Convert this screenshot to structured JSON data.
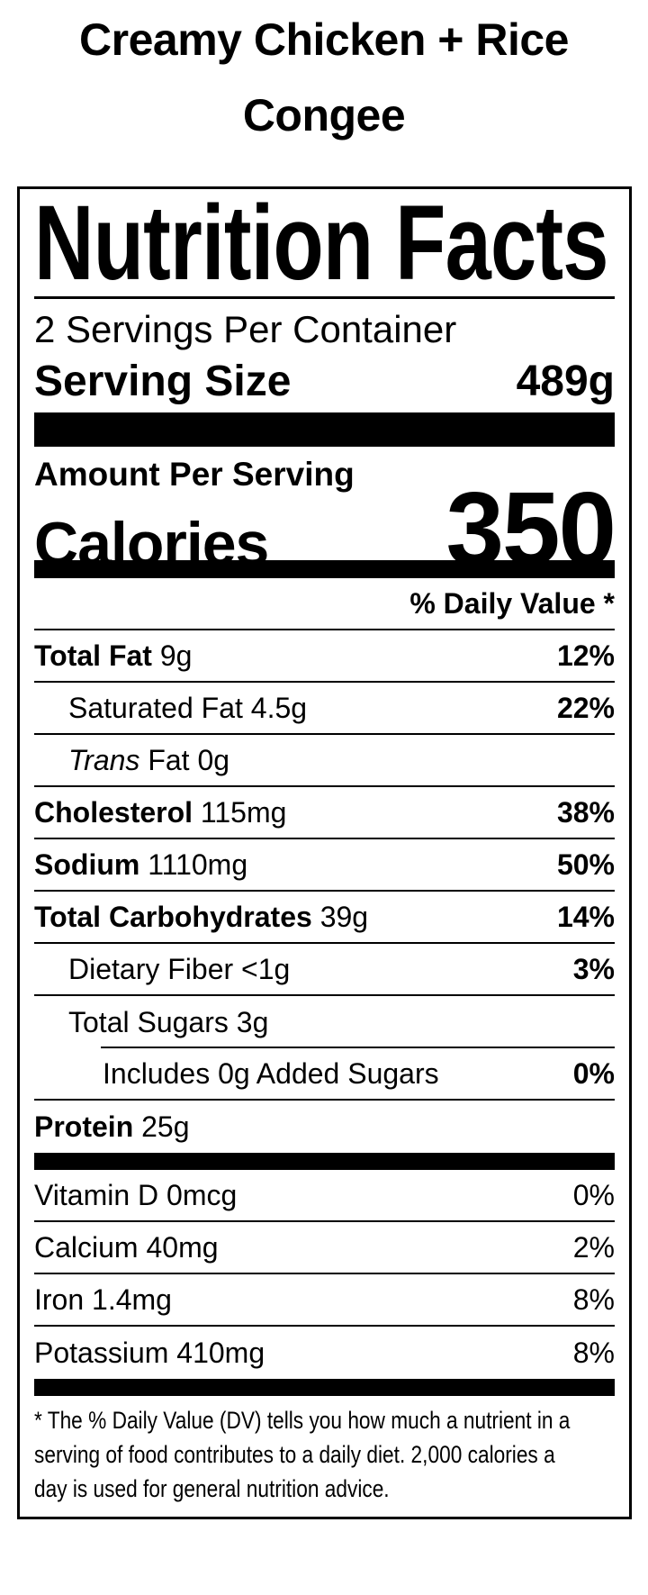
{
  "title": "Creamy Chicken + Rice Congee",
  "label": {
    "heading": "Nutrition Facts",
    "servings_per_container": "2 Servings Per Container",
    "serving_size": {
      "label": "Serving Size",
      "value": "489g"
    },
    "amount_per_serving": "Amount Per Serving",
    "calories": {
      "label": "Calories",
      "value": "350"
    },
    "daily_value_header": "% Daily Value *",
    "nutrient_rows": [
      {
        "b": "Total Fat",
        "r": " 9g",
        "dv": "12%",
        "dv_bold": true,
        "indent": 0,
        "rule": "full"
      },
      {
        "r": "Saturated Fat 4.5g",
        "dv": "22%",
        "dv_bold": true,
        "indent": 1,
        "rule": "full"
      },
      {
        "i": "Trans",
        "r": " Fat 0g",
        "dv": "",
        "dv_bold": false,
        "indent": 1,
        "rule": "full"
      },
      {
        "b": "Cholesterol",
        "r": " 115mg",
        "dv": "38%",
        "dv_bold": true,
        "indent": 0,
        "rule": "full"
      },
      {
        "b": "Sodium",
        "r": " 1110mg",
        "dv": "50%",
        "dv_bold": true,
        "indent": 0,
        "rule": "full"
      },
      {
        "b": "Total Carbohydrates",
        "r": " 39g",
        "dv": "14%",
        "dv_bold": true,
        "indent": 0,
        "rule": "full"
      },
      {
        "r": "Dietary Fiber <1g",
        "dv": "3%",
        "dv_bold": true,
        "indent": 1,
        "rule": "full"
      },
      {
        "r": "Total Sugars 3g",
        "dv": "",
        "dv_bold": false,
        "indent": 1,
        "rule": "indent"
      },
      {
        "r": "Includes 0g Added Sugars",
        "dv": "0%",
        "dv_bold": true,
        "indent": 2,
        "rule": "full"
      },
      {
        "b": "Protein",
        "r": " 25g",
        "dv": "",
        "dv_bold": false,
        "indent": 0,
        "rule": "none"
      }
    ],
    "vitamin_rows": [
      {
        "r": "Vitamin D 0mcg",
        "dv": "0%",
        "dv_bold": false,
        "indent": 0,
        "rule": "full"
      },
      {
        "r": "Calcium 40mg",
        "dv": "2%",
        "dv_bold": false,
        "indent": 0,
        "rule": "full"
      },
      {
        "r": "Iron 1.4mg",
        "dv": "8%",
        "dv_bold": false,
        "indent": 0,
        "rule": "full"
      },
      {
        "r": "Potassium 410mg",
        "dv": "8%",
        "dv_bold": false,
        "indent": 0,
        "rule": "none"
      }
    ],
    "footnote_lines": [
      "* The % Daily Value (DV) tells you how much a nutrient in a",
      "serving of food contributes to a daily diet. 2,000 calories a",
      "day is used for general nutrition advice."
    ]
  },
  "colors": {
    "text": "#000000",
    "background": "#ffffff"
  }
}
